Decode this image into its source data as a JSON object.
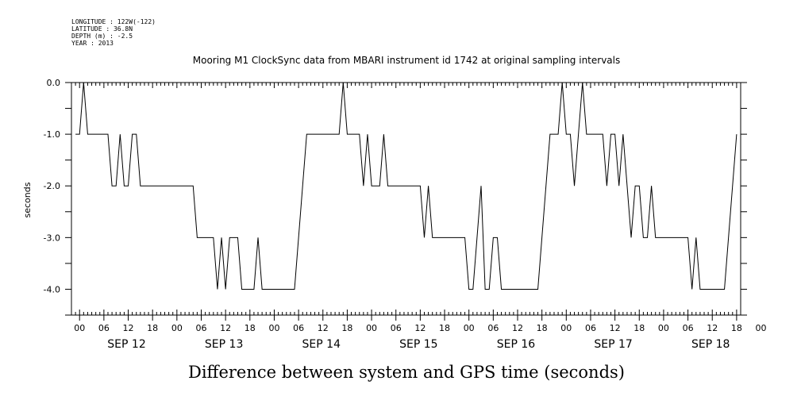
{
  "metadata": {
    "longitude": "LONGITUDE : 122W(-122)",
    "latitude": "LATITUDE : 36.8N",
    "depth": "DEPTH (m) : -2.5",
    "year": "YEAR : 2013"
  },
  "chart_data": {
    "type": "line",
    "title": "Mooring M1 ClockSync data from MBARI instrument id 1742 at original sampling intervals",
    "xlabel": "Difference between system and GPS time (seconds)",
    "ylabel": "seconds",
    "ylim": [
      -4.5,
      0.0
    ],
    "yticks": [
      0.0,
      -1.0,
      -2.0,
      -3.0,
      -4.0
    ],
    "ytick_labels": [
      "0.0",
      "-1.0",
      "-2.0",
      "-3.0",
      "-4.0"
    ],
    "xlim_hours": [
      -2,
      163
    ],
    "hour_labels": [
      "00",
      "06",
      "12",
      "18",
      "00",
      "06",
      "12",
      "18",
      "00",
      "06",
      "12",
      "18",
      "00",
      "06",
      "12",
      "18",
      "00",
      "06",
      "12",
      "18",
      "00",
      "06",
      "12",
      "18",
      "00",
      "06",
      "12",
      "18",
      "00"
    ],
    "day_labels": [
      "SEP 12",
      "SEP 13",
      "SEP 14",
      "SEP 15",
      "SEP 16",
      "SEP 17",
      "SEP 18"
    ],
    "x_hours": [
      -1,
      0,
      1,
      2,
      3,
      4,
      5,
      6,
      7,
      8,
      9,
      10,
      11,
      12,
      13,
      14,
      15,
      16,
      17,
      18,
      19,
      20,
      21,
      22,
      23,
      24,
      25,
      26,
      27,
      28,
      29,
      30,
      31,
      32,
      33,
      34,
      35,
      36,
      37,
      38,
      39,
      40,
      41,
      42,
      43,
      44,
      45,
      46,
      47,
      48,
      49,
      50,
      51,
      52,
      53,
      54,
      55,
      56,
      57,
      58,
      59,
      60,
      61,
      62,
      63,
      64,
      65,
      66,
      67,
      68,
      69,
      70,
      71,
      72,
      73,
      74,
      75,
      76,
      77,
      78,
      79,
      80,
      81,
      82,
      83,
      84,
      85,
      86,
      87,
      88,
      89,
      90,
      91,
      92,
      93,
      94,
      95,
      96,
      97,
      98,
      99,
      100,
      101,
      102,
      103,
      104,
      105,
      106,
      107,
      108,
      109,
      110,
      111,
      112,
      113,
      114,
      115,
      116,
      117,
      118,
      119,
      120,
      121,
      122,
      123,
      124,
      125,
      126,
      127,
      128,
      129,
      130,
      131,
      132,
      133,
      134,
      135,
      136,
      137,
      138,
      139,
      140,
      141,
      142,
      143,
      144,
      145,
      146,
      147,
      148,
      149,
      150,
      151,
      152,
      153,
      154,
      155,
      156,
      157,
      158,
      159,
      160,
      161,
      162
    ],
    "values": [
      -1,
      -1,
      0,
      -1,
      -1,
      -1,
      -1,
      -1,
      -1,
      -2,
      -2,
      -1,
      -2,
      -2,
      -1,
      -1,
      -2,
      -2,
      -2,
      -2,
      -2,
      -2,
      -2,
      -2,
      -2,
      -2,
      -2,
      -2,
      -2,
      -2,
      -3,
      -3,
      -3,
      -3,
      -3,
      -4,
      -3,
      -4,
      -3,
      -3,
      -3,
      -4,
      -4,
      -4,
      -4,
      -3,
      -4,
      -4,
      -4,
      -4,
      -4,
      -4,
      -4,
      -4,
      -4,
      -3,
      -2,
      -1,
      -1,
      -1,
      -1,
      -1,
      -1,
      -1,
      -1,
      -1,
      0,
      -1,
      -1,
      -1,
      -1,
      -2,
      -1,
      -2,
      -2,
      -2,
      -1,
      -2,
      -2,
      -2,
      -2,
      -2,
      -2,
      -2,
      -2,
      -2,
      -3,
      -2,
      -3,
      -3,
      -3,
      -3,
      -3,
      -3,
      -3,
      -3,
      -3,
      -4,
      -4,
      -3,
      -2,
      -4,
      -4,
      -3,
      -3,
      -4,
      -4,
      -4,
      -4,
      -4,
      -4,
      -4,
      -4,
      -4,
      -4,
      -3,
      -2,
      -1,
      -1,
      -1,
      0,
      -1,
      -1,
      -2,
      -1,
      0,
      -1,
      -1,
      -1,
      -1,
      -1,
      -2,
      -1,
      -1,
      -2,
      -1,
      -2,
      -3,
      -2,
      -2,
      -3,
      -3,
      -2,
      -3,
      -3,
      -3,
      -3,
      -3,
      -3,
      -3,
      -3,
      -3,
      -4,
      -3,
      -4,
      -4,
      -4,
      -4,
      -4,
      -4,
      -4,
      -3,
      -2,
      -1
    ]
  }
}
